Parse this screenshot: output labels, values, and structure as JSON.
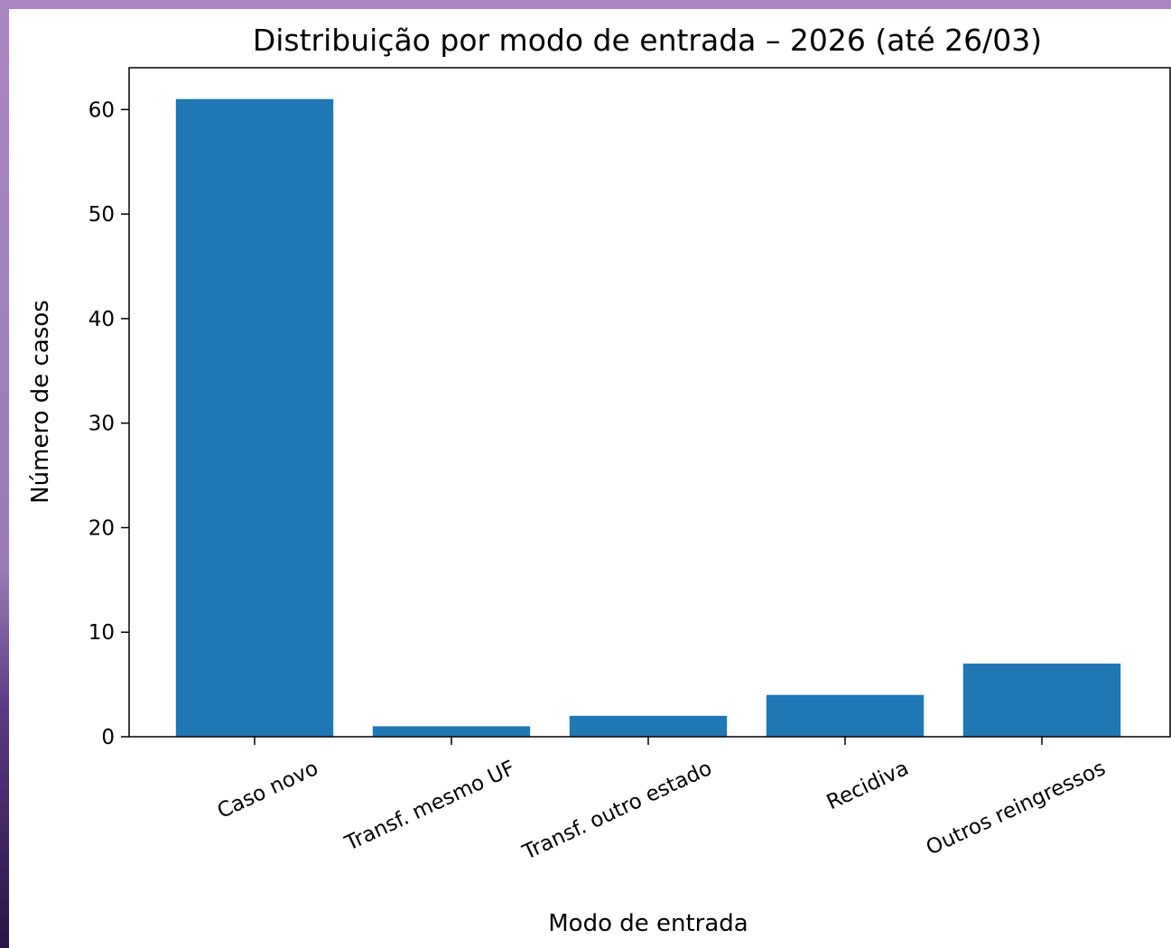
{
  "chart_data": {
    "type": "bar",
    "title": "Distribuição por modo de entrada – 2026 (até 26/03)",
    "xlabel": "Modo de entrada",
    "ylabel": "Número de casos",
    "categories": [
      "Caso novo",
      "Transf. mesmo UF",
      "Transf. outro estado",
      "Recidiva",
      "Outros reingressos"
    ],
    "values": [
      61,
      1,
      2,
      4,
      7
    ],
    "ylim": [
      0,
      64
    ],
    "yticks": [
      0,
      10,
      20,
      30,
      40,
      50,
      60
    ],
    "bar_color": "#1f77b4",
    "grid": false
  }
}
